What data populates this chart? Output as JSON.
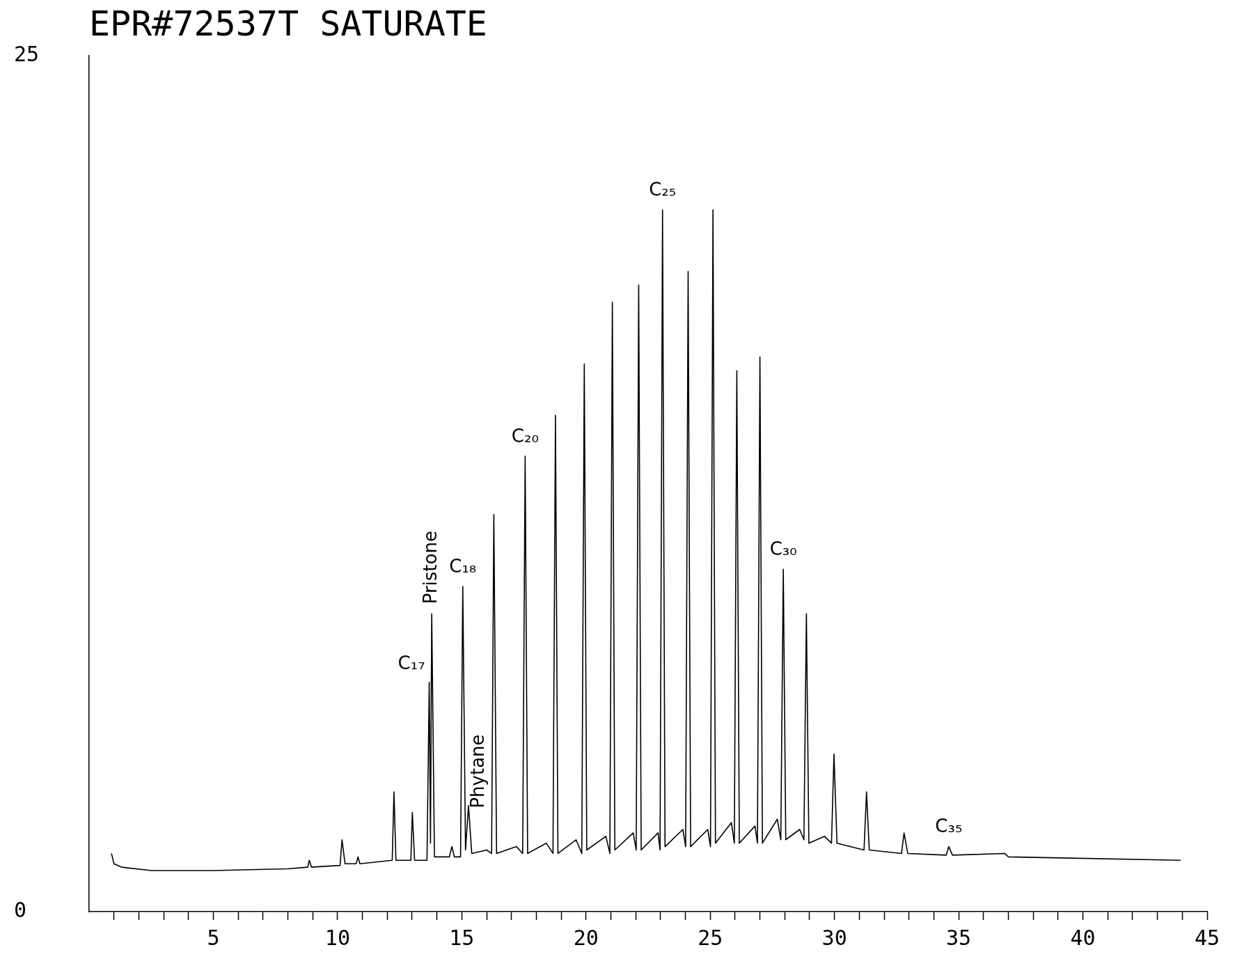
{
  "chart_data": {
    "type": "line",
    "title": "EPR#72537T SATURATE",
    "x": [
      0.9,
      1.0,
      1.3,
      2.5,
      5,
      8,
      8.8,
      8.86,
      8.95,
      10.1,
      10.18,
      10.3,
      10.75,
      10.82,
      10.9,
      12.2,
      12.27,
      12.35,
      12.95,
      13.01,
      13.1,
      13.6,
      13.69,
      13.74,
      13.79,
      13.9,
      14.5,
      14.6,
      14.7,
      14.95,
      15.04,
      15.15,
      15.27,
      15.4,
      16.0,
      16.2,
      16.29,
      16.4,
      17.2,
      17.45,
      17.55,
      17.65,
      18.4,
      18.67,
      18.77,
      18.87,
      19.6,
      19.83,
      19.93,
      20.03,
      20.8,
      20.96,
      21.06,
      21.16,
      21.9,
      22.02,
      22.12,
      22.22,
      22.9,
      22.98,
      23.08,
      23.18,
      23.9,
      24.01,
      24.11,
      24.21,
      24.9,
      25.01,
      25.11,
      25.21,
      25.85,
      25.97,
      26.07,
      26.17,
      26.8,
      26.9,
      27.0,
      27.1,
      27.7,
      27.84,
      27.94,
      28.04,
      28.6,
      28.77,
      28.87,
      28.97,
      29.6,
      29.88,
      29.98,
      30.1,
      31.19,
      31.29,
      31.4,
      32.7,
      32.8,
      32.95,
      34.5,
      34.6,
      34.75,
      36.85,
      37,
      43.93
    ],
    "values": [
      1.7,
      1.4,
      1.3,
      1.2,
      1.2,
      1.25,
      1.3,
      1.5,
      1.3,
      1.35,
      2.1,
      1.4,
      1.4,
      1.6,
      1.4,
      1.5,
      3.5,
      1.5,
      1.5,
      2.9,
      1.5,
      1.5,
      6.7,
      2.0,
      8.7,
      1.6,
      1.6,
      1.9,
      1.6,
      1.6,
      9.5,
      1.8,
      3.1,
      1.7,
      1.8,
      1.7,
      11.6,
      1.7,
      1.9,
      1.7,
      13.3,
      1.7,
      2.0,
      1.7,
      14.5,
      1.7,
      2.1,
      1.7,
      16.0,
      1.8,
      2.2,
      1.7,
      17.8,
      1.8,
      2.3,
      1.8,
      18.3,
      1.8,
      2.3,
      1.8,
      20.5,
      1.9,
      2.4,
      1.9,
      18.7,
      1.9,
      2.4,
      1.9,
      20.5,
      2.0,
      2.6,
      2.0,
      15.8,
      2.0,
      2.5,
      2.0,
      16.2,
      2.0,
      2.7,
      2.1,
      10.0,
      2.1,
      2.4,
      2.1,
      8.7,
      2.0,
      2.2,
      2.0,
      4.6,
      2.0,
      1.8,
      3.5,
      1.8,
      1.7,
      2.3,
      1.7,
      1.65,
      1.9,
      1.65,
      1.7,
      1.6,
      1.5
    ],
    "color": "#000000",
    "marker": "none",
    "xlim": [
      0,
      45
    ],
    "xticks": [
      {
        "value": 1,
        "label": null
      },
      {
        "value": 2,
        "label": null
      },
      {
        "value": 3,
        "label": null
      },
      {
        "value": 4,
        "label": null
      },
      5,
      {
        "value": 6,
        "label": null
      },
      {
        "value": 7,
        "label": null
      },
      {
        "value": 8,
        "label": null
      },
      {
        "value": 9,
        "label": null
      },
      10,
      {
        "value": 11,
        "label": null
      },
      {
        "value": 12,
        "label": null
      },
      {
        "value": 13,
        "label": null
      },
      {
        "value": 14,
        "label": null
      },
      15,
      {
        "value": 16,
        "label": null
      },
      {
        "value": 17,
        "label": null
      },
      {
        "value": 18,
        "label": null
      },
      {
        "value": 19,
        "label": null
      },
      20,
      {
        "value": 21,
        "label": null
      },
      {
        "value": 22,
        "label": null
      },
      {
        "value": 23,
        "label": null
      },
      {
        "value": 24,
        "label": null
      },
      25,
      {
        "value": 26,
        "label": null
      },
      {
        "value": 27,
        "label": null
      },
      {
        "value": 28,
        "label": null
      },
      {
        "value": 29,
        "label": null
      },
      30,
      {
        "value": 31,
        "label": null
      },
      {
        "value": 32,
        "label": null
      },
      {
        "value": 33,
        "label": null
      },
      {
        "value": 34,
        "label": null
      },
      35,
      {
        "value": 36,
        "label": null
      },
      {
        "value": 37,
        "label": null
      },
      {
        "value": 38,
        "label": null
      },
      {
        "value": 39,
        "label": null
      },
      40,
      {
        "value": 41,
        "label": null
      },
      {
        "value": 42,
        "label": null
      },
      {
        "value": 43,
        "label": null
      },
      {
        "value": 44,
        "label": null
      },
      45
    ],
    "ylim": [
      0,
      25
    ],
    "yticks": [
      0,
      25
    ],
    "annotations": [
      {
        "text": "C₁₇",
        "x": 13.69,
        "y": 6.7
      },
      {
        "text": "Pristone",
        "x": 13.79,
        "y": 8.7
      },
      {
        "text": "C₁₈",
        "x": 15.04,
        "y": 9.5
      },
      {
        "text": "Phytane",
        "x": 15.27,
        "y": 3.1
      },
      {
        "text": "C₂₀",
        "x": 17.55,
        "y": 13.3
      },
      {
        "text": "C₂₅",
        "x": 23.08,
        "y": 20.5
      },
      {
        "text": "C₃₀",
        "x": 27.94,
        "y": 10.0
      },
      {
        "text": "C₃₅",
        "x": 34.6,
        "y": 1.9
      }
    ]
  }
}
